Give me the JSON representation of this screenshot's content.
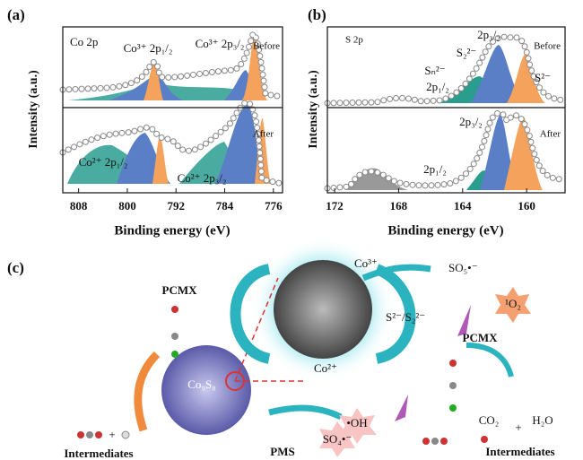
{
  "panel_a": {
    "label": "(a)",
    "element": "Co 2p",
    "ylabel": "Intensity (a.u.)",
    "xlabel": "Binding energy (eV)",
    "xlim": [
      810.6,
      774.5
    ],
    "xticks": [
      808,
      800,
      792,
      784,
      776
    ],
    "before": "Before",
    "after": "After",
    "peaks": {
      "co3_p12": "Co³⁺ 2p₁/₂",
      "co3_p32": "Co³⁺ 2p₃/₂",
      "co2_p12": "Co²⁺ 2p₁/₂",
      "co2_p32": "Co²⁺ 2p₃/₂"
    }
  },
  "panel_b": {
    "label": "(b)",
    "element": "S 2p",
    "ylabel": "Intensity (a.u.)",
    "xlabel": "Binding energy (eV)",
    "xlim": [
      172.45,
      157.6
    ],
    "xticks": [
      172,
      168,
      164,
      160
    ],
    "before": "Before",
    "after": "After",
    "peaks": {
      "p32_before": "2p₃/₂",
      "s2_2": "S₂²⁻",
      "sn": "Sₙ²⁻",
      "p12_before": "2p₁/₂",
      "s2": "S²⁻",
      "p32_after": "2p₃/₂",
      "p12_after": "2p₁/₂"
    }
  },
  "panel_c": {
    "label": "(c)",
    "pcmx_left": "PCMX",
    "co9s8": "Co₉S₈",
    "co3": "Co³⁺",
    "co2": "Co²⁺",
    "sulfur": "S²⁻/S₂²⁻",
    "so5": "SO₅•⁻",
    "singlet": "¹O₂",
    "pcmx_right": "PCMX",
    "co2_gas": "CO₂",
    "plus_right": "+",
    "h2o": "H₂O",
    "inter_right": "Intermediates",
    "oh": "•OH",
    "so4": "SO₄•⁻",
    "pms": "PMS",
    "plus_left": "+",
    "inter_left": "Intermediates"
  }
}
